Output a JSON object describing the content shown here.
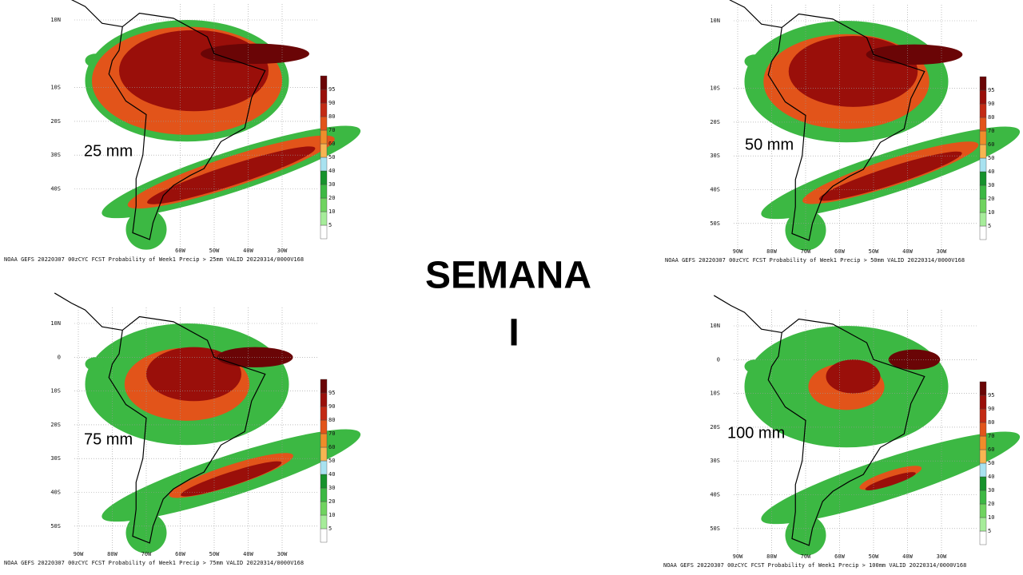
{
  "title": "SEMANA",
  "subtitle": "I",
  "colorbar_ticks": [
    5,
    10,
    20,
    30,
    40,
    50,
    60,
    70,
    80,
    90,
    95
  ],
  "panels": [
    {
      "label": "25 mm",
      "caption": "NOAA GEFS 20220307 00zCYC FCST Probability of Week1 Precip > 25mm  VALID 20220314/0000V168",
      "lat_labels": [
        {
          "value": 10,
          "label": "10N"
        },
        {
          "value": -10,
          "label": "10S"
        },
        {
          "value": -20,
          "label": "20S"
        },
        {
          "value": -30,
          "label": "30S"
        },
        {
          "value": -40,
          "label": "40S"
        }
      ],
      "lon_labels": [
        {
          "value": -60,
          "label": "60W"
        },
        {
          "value": -50,
          "label": "50W"
        },
        {
          "value": -40,
          "label": "40W"
        },
        {
          "value": -30,
          "label": "30W"
        }
      ]
    },
    {
      "label": "50 mm",
      "caption": "NOAA GEFS 20220307 00zCYC FCST Probability of Week1 Precip > 50mm  VALID 20220314/0000V168",
      "lat_labels": [
        {
          "value": 10,
          "label": "10N"
        },
        {
          "value": -10,
          "label": "10S"
        },
        {
          "value": -20,
          "label": "20S"
        },
        {
          "value": -30,
          "label": "30S"
        },
        {
          "value": -40,
          "label": "40S"
        },
        {
          "value": -50,
          "label": "50S"
        }
      ],
      "lon_labels": [
        {
          "value": -90,
          "label": "90W"
        },
        {
          "value": -80,
          "label": "80W"
        },
        {
          "value": -70,
          "label": "70W"
        },
        {
          "value": -60,
          "label": "60W"
        },
        {
          "value": -50,
          "label": "50W"
        },
        {
          "value": -40,
          "label": "40W"
        },
        {
          "value": -30,
          "label": "30W"
        }
      ]
    },
    {
      "label": "75 mm",
      "caption": "NOAA GEFS 20220307 00zCYC FCST Probability of Week1 Precip > 75mm  VALID 20220314/0000V168",
      "lat_labels": [
        {
          "value": 10,
          "label": "10N"
        },
        {
          "value": 0,
          "label": "0"
        },
        {
          "value": -10,
          "label": "10S"
        },
        {
          "value": -20,
          "label": "20S"
        },
        {
          "value": -30,
          "label": "30S"
        },
        {
          "value": -40,
          "label": "40S"
        },
        {
          "value": -50,
          "label": "50S"
        }
      ],
      "lon_labels": [
        {
          "value": -90,
          "label": "90W"
        },
        {
          "value": -80,
          "label": "80W"
        },
        {
          "value": -70,
          "label": "70W"
        },
        {
          "value": -60,
          "label": "60W"
        },
        {
          "value": -50,
          "label": "50W"
        },
        {
          "value": -40,
          "label": "40W"
        },
        {
          "value": -30,
          "label": "30W"
        }
      ]
    },
    {
      "label": "100 mm",
      "caption": "NOAA GEFS 20220307 00zCYC FCST Probability of Week1 Precip > 100mm  VALID 20220314/0000V168",
      "lat_labels": [
        {
          "value": 10,
          "label": "10N"
        },
        {
          "value": 0,
          "label": "0"
        },
        {
          "value": -10,
          "label": "10S"
        },
        {
          "value": -20,
          "label": "20S"
        },
        {
          "value": -30,
          "label": "30S"
        },
        {
          "value": -40,
          "label": "40S"
        },
        {
          "value": -50,
          "label": "50S"
        }
      ],
      "lon_labels": [
        {
          "value": -90,
          "label": "90W"
        },
        {
          "value": -80,
          "label": "80W"
        },
        {
          "value": -70,
          "label": "70W"
        },
        {
          "value": -60,
          "label": "60W"
        },
        {
          "value": -50,
          "label": "50W"
        },
        {
          "value": -40,
          "label": "40W"
        },
        {
          "value": -30,
          "label": "30W"
        }
      ]
    }
  ]
}
